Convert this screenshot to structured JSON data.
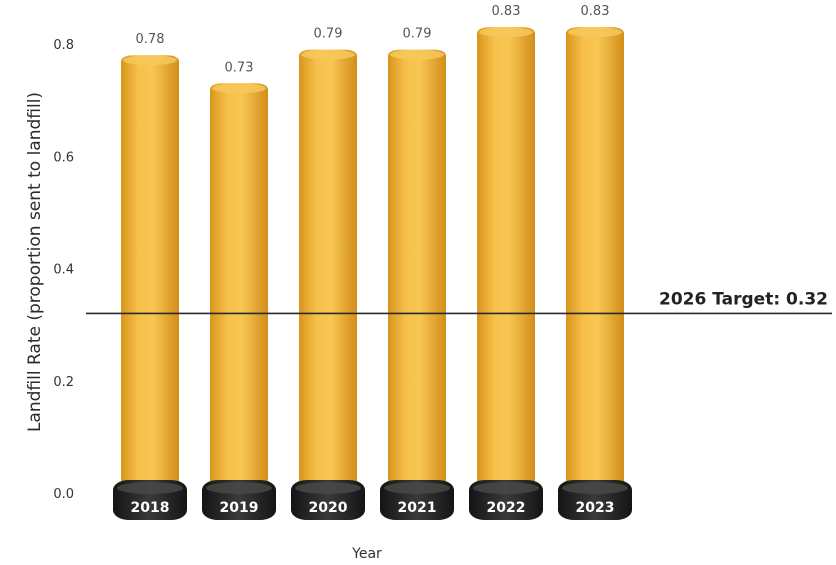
{
  "chart_data": {
    "type": "bar",
    "categories": [
      "2018",
      "2019",
      "2020",
      "2021",
      "2022",
      "2023"
    ],
    "values": [
      0.78,
      0.73,
      0.79,
      0.79,
      0.83,
      0.83
    ],
    "value_labels": [
      "0.78",
      "0.73",
      "0.79",
      "0.79",
      "0.83",
      "0.83"
    ],
    "title": "",
    "xlabel": "Year",
    "ylabel": "Landfill Rate (proportion sent to landfill)",
    "ylim": [
      0,
      0.8
    ],
    "yticks": [
      "0.0",
      "0.2",
      "0.4",
      "0.6",
      "0.8"
    ],
    "ytick_values": [
      0,
      0.2,
      0.4,
      0.6,
      0.8
    ],
    "grid": false,
    "legend": "none",
    "target": {
      "value": 0.32,
      "label": "2026 Target: 0.32"
    },
    "colors": {
      "bar": "#f2b431",
      "base": "#1e1e1e",
      "target_line": "#2a2a2a"
    }
  }
}
